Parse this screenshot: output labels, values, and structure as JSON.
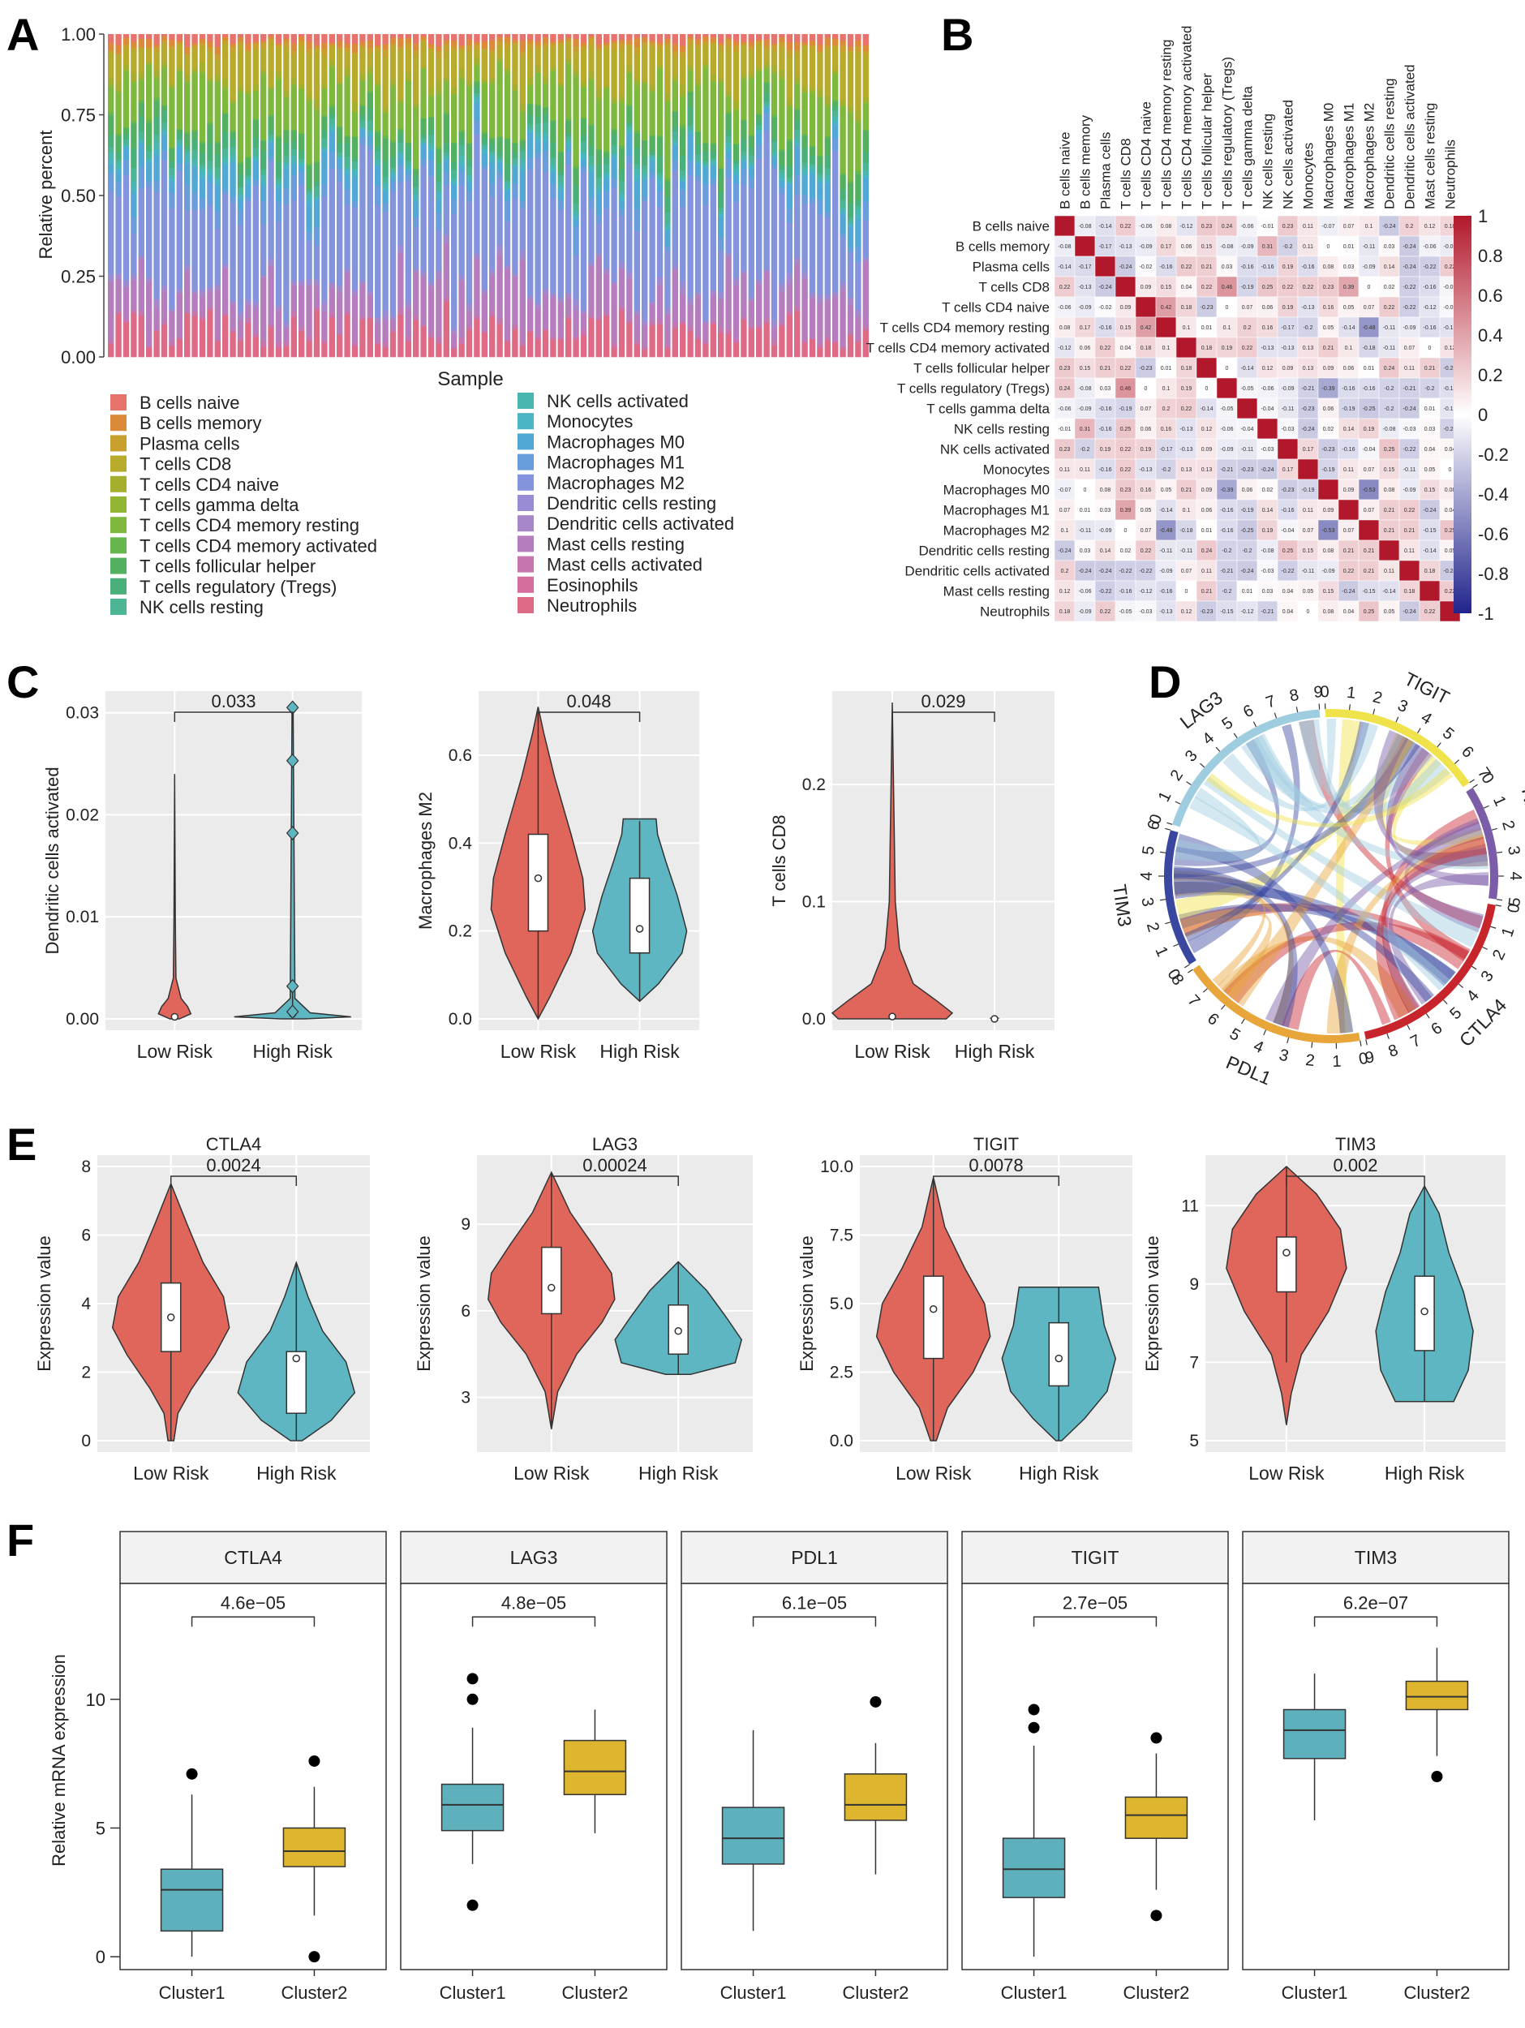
{
  "colors": {
    "low": "#E0665C",
    "high": "#5DB6C1",
    "cluster1": "#5DB0BC",
    "cluster2": "#DDB52E",
    "panel_bg": "#EBEBEB"
  },
  "panels": {
    "A": {
      "letter": "A",
      "ylabel": "Relative percent",
      "xlabel": "Sample",
      "yticks": [
        "1.00",
        "0.75",
        "0.50",
        "0.25",
        "0.00"
      ],
      "legend_left": [
        "B cells naive",
        "B cells memory",
        "Plasma cells",
        "T cells CD8",
        "T cells CD4 naive",
        "T cells gamma delta",
        "T cells CD4 memory resting",
        "T cells CD4 memory activated",
        "T cells follicular helper",
        "T cells regulatory (Tregs)",
        "NK cells resting"
      ],
      "legend_right": [
        "NK cells activated",
        "Monocytes",
        "Macrophages M0",
        "Macrophages M1",
        "Macrophages M2",
        "Dendritic cells resting",
        "Dendritic cells activated",
        "Mast cells resting",
        "Mast cells activated",
        "Eosinophils",
        "Neutrophils"
      ],
      "legend_colors_left": [
        "#E8736C",
        "#DB8A3A",
        "#C8A02E",
        "#B8AA2A",
        "#A6AE2E",
        "#93B534",
        "#7EB93E",
        "#66B64E",
        "#52B060",
        "#49B07A",
        "#4CB595"
      ],
      "legend_colors_right": [
        "#49B6AF",
        "#4AB3C4",
        "#52A8D4",
        "#6A9DDC",
        "#8394DC",
        "#9A8CD4",
        "#A886CA",
        "#B67DBE",
        "#C675AE",
        "#D46D9C",
        "#DE6A86"
      ]
    },
    "B": {
      "letter": "B",
      "labels": [
        "B cells naive",
        "B cells memory",
        "Plasma cells",
        "T cells CD8",
        "T cells CD4 naive",
        "T cells CD4 memory resting",
        "T cells CD4 memory activated",
        "T cells follicular helper",
        "T cells regulatory (Tregs)",
        "T cells gamma delta",
        "NK cells resting",
        "NK cells activated",
        "Monocytes",
        "Macrophages M0",
        "Macrophages M1",
        "Macrophages M2",
        "Dendritic cells resting",
        "Dendritic cells activated",
        "Mast cells resting",
        "Neutrophils"
      ],
      "colorbar_ticks": [
        "1",
        "0.8",
        "0.6",
        "0.4",
        "0.2",
        "0",
        "-0.2",
        "-0.4",
        "-0.6",
        "-0.8",
        "-1"
      ]
    },
    "C": {
      "letter": "C",
      "plots": [
        {
          "ylabel": "Dendritic cells activated",
          "pval": "0.033",
          "yticks": [
            "0.03",
            "0.02",
            "0.01",
            "0.00"
          ],
          "xcats": [
            "Low Risk",
            "High Risk"
          ]
        },
        {
          "ylabel": "Macrophages M2",
          "pval": "0.048",
          "yticks": [
            "0.6",
            "0.4",
            "0.2",
            "0.0"
          ],
          "xcats": [
            "Low Risk",
            "High Risk"
          ]
        },
        {
          "ylabel": "T cells CD8",
          "pval": "0.029",
          "yticks": [
            "0.2",
            "0.1",
            "0.0"
          ],
          "xcats": [
            "Low Risk",
            "High Risk"
          ]
        }
      ]
    },
    "D": {
      "letter": "D",
      "sectors": [
        "LAG3",
        "TIGIT",
        "Risk Score",
        "CTLA4",
        "PDL1",
        "TIM3"
      ]
    },
    "E": {
      "letter": "E",
      "plots": [
        {
          "title": "CTLA4",
          "pval": "0.0024",
          "ylabel": "Expression value",
          "yticks": [
            "8",
            "6",
            "4",
            "2",
            "0"
          ],
          "xcats": [
            "Low Risk",
            "High Risk"
          ]
        },
        {
          "title": "LAG3",
          "pval": "0.00024",
          "ylabel": "Expression value",
          "yticks": [
            "9",
            "6",
            "3"
          ],
          "xcats": [
            "Low Risk",
            "High Risk"
          ]
        },
        {
          "title": "TIGIT",
          "pval": "0.0078",
          "ylabel": "Expression value",
          "yticks": [
            "10.0",
            "7.5",
            "5.0",
            "2.5",
            "0.0"
          ],
          "xcats": [
            "Low Risk",
            "High Risk"
          ]
        },
        {
          "title": "TIM3",
          "pval": "0.002",
          "ylabel": "Expression value",
          "yticks": [
            "11",
            "9",
            "7",
            "5"
          ],
          "xcats": [
            "Low Risk",
            "High Risk"
          ]
        }
      ]
    },
    "F": {
      "letter": "F",
      "ylabel": "Relative mRNA expression",
      "yticks": [
        "10",
        "5",
        "0"
      ],
      "xcats": [
        "Cluster1",
        "Cluster2"
      ],
      "facets": [
        {
          "title": "CTLA4",
          "pval": "4.6e−05"
        },
        {
          "title": "LAG3",
          "pval": "4.8e−05"
        },
        {
          "title": "PDL1",
          "pval": "6.1e−05"
        },
        {
          "title": "TIGIT",
          "pval": "2.7e−05"
        },
        {
          "title": "TIM3",
          "pval": "6.2e−07"
        }
      ]
    }
  },
  "chart_data": [
    {
      "type": "bar",
      "stacked": true,
      "x": "100 samples",
      "ylim": [
        0,
        1
      ],
      "legend": "bottom",
      "series": [
        {
          "name": "T cells CD4 naive / T cells CD4 memory resting (mean)",
          "values": [
            0.14
          ]
        },
        {
          "name": "Macrophages M2 (mean)",
          "values": [
            0.3
          ]
        }
      ]
    },
    {
      "type": "heatmap",
      "value_range": [
        -1,
        1
      ],
      "diagonal": 1,
      "notable": [
        {
          "pair": [
            "T cells CD8",
            "T cells regulatory (Tregs)"
          ],
          "value": 0.46
        },
        {
          "pair": [
            "T cells CD4 naive",
            "T cells CD4 memory resting"
          ],
          "value": 0.42
        },
        {
          "pair": [
            "Macrophages M0",
            "Macrophages M2"
          ],
          "value": -0.53
        },
        {
          "pair": [
            "T cells CD4 memory resting",
            "Macrophages M2"
          ],
          "value": -0.48
        },
        {
          "pair": [
            "NK cells resting",
            "B cells memory"
          ],
          "value": 0.31
        }
      ]
    },
    {
      "type": "violin",
      "title": "",
      "series": [
        {
          "name": "Dendritic cells activated",
          "low_median": 0.0002,
          "high_median": 0.0002,
          "ylim": [
            0,
            0.031
          ],
          "high_outliers": [
            0.0305,
            0.0253,
            0.0182,
            0.0032,
            0.0007
          ]
        },
        {
          "name": "Macrophages M2",
          "low_median": 0.32,
          "high_median": 0.21,
          "ylim": [
            0,
            0.72
          ]
        },
        {
          "name": "T cells CD8",
          "low_median": 0.002,
          "high_median": 0.0,
          "ylim": [
            0,
            0.27
          ]
        }
      ]
    },
    {
      "type": "chord",
      "sectors": [
        "LAG3",
        "TIGIT",
        "Risk Score",
        "CTLA4",
        "PDL1",
        "TIM3"
      ]
    },
    {
      "type": "violin",
      "series": [
        {
          "name": "CTLA4",
          "low_median": 3.6,
          "high_median": 2.4,
          "ylim": [
            0,
            8
          ]
        },
        {
          "name": "LAG3",
          "low_median": 6.8,
          "high_median": 5.3,
          "ylim": [
            1.5,
            11
          ]
        },
        {
          "name": "TIGIT",
          "low_median": 4.8,
          "high_median": 3.0,
          "ylim": [
            0,
            10
          ]
        },
        {
          "name": "TIM3",
          "low_median": 9.8,
          "high_median": 8.3,
          "ylim": [
            5,
            12
          ]
        }
      ]
    },
    {
      "type": "box",
      "ylim": [
        -0.5,
        14.5
      ],
      "series": [
        {
          "name": "CTLA4",
          "cluster1": [
            0,
            1.0,
            2.6,
            3.4,
            6.3
          ],
          "cluster1_outliers": [
            7.1
          ],
          "cluster2": [
            1.6,
            3.5,
            4.1,
            5.0,
            6.6
          ],
          "cluster2_outliers": [
            7.6,
            0.0
          ]
        },
        {
          "name": "LAG3",
          "cluster1": [
            3.6,
            4.9,
            5.9,
            6.7,
            8.9
          ],
          "cluster1_outliers": [
            10.8,
            10.0,
            2.0
          ],
          "cluster2": [
            4.8,
            6.3,
            7.2,
            8.4,
            9.6
          ],
          "cluster2_outliers": []
        },
        {
          "name": "PDL1",
          "cluster1": [
            1.0,
            3.6,
            4.6,
            5.8,
            8.8
          ],
          "cluster1_outliers": [],
          "cluster2": [
            3.2,
            5.3,
            5.9,
            7.1,
            8.3
          ],
          "cluster2_outliers": [
            9.9
          ]
        },
        {
          "name": "TIGIT",
          "cluster1": [
            0,
            2.3,
            3.4,
            4.6,
            8.2
          ],
          "cluster1_outliers": [
            9.6,
            8.9
          ],
          "cluster2": [
            2.6,
            4.6,
            5.5,
            6.2,
            7.9
          ],
          "cluster2_outliers": [
            8.5,
            1.6
          ]
        },
        {
          "name": "TIM3",
          "cluster1": [
            5.3,
            7.7,
            8.8,
            9.6,
            11.0
          ],
          "cluster1_outliers": [],
          "cluster2": [
            7.8,
            9.6,
            10.1,
            10.7,
            12.0
          ],
          "cluster2_outliers": [
            7.0
          ]
        }
      ]
    }
  ]
}
